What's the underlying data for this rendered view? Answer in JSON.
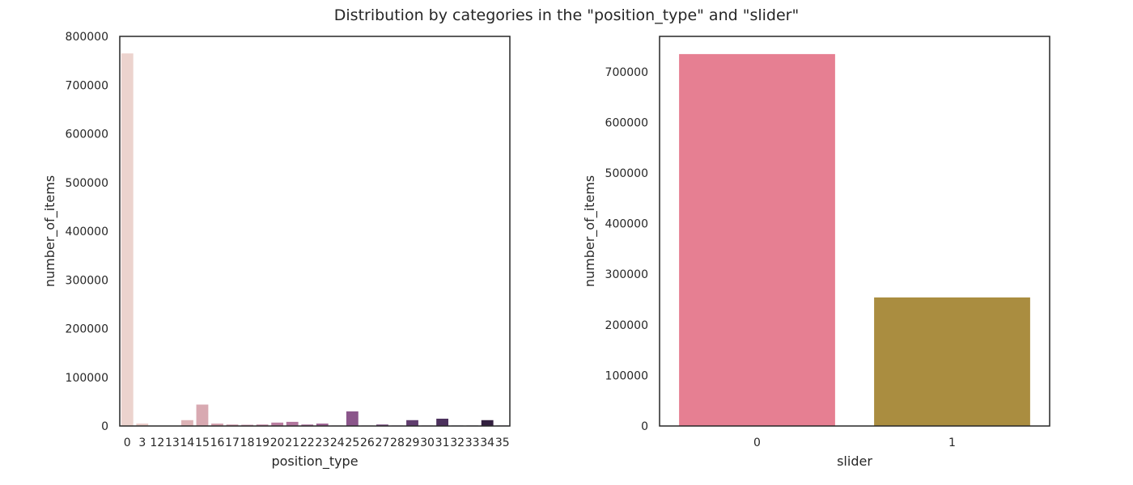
{
  "figure": {
    "title": "Distribution by categories in the \"position_type\" and \"slider\""
  },
  "chart_data": [
    {
      "type": "bar",
      "xlabel": "position_type",
      "ylabel": "number_of_items",
      "categories": [
        "0",
        "3",
        "12",
        "13",
        "14",
        "15",
        "16",
        "17",
        "18",
        "19",
        "20",
        "21",
        "22",
        "23",
        "24",
        "25",
        "26",
        "27",
        "28",
        "29",
        "30",
        "31",
        "32",
        "33",
        "34",
        "35"
      ],
      "values": [
        765000,
        5000,
        800,
        600,
        12000,
        44000,
        5000,
        3000,
        2500,
        3000,
        7000,
        8500,
        3000,
        5000,
        1000,
        30000,
        1000,
        3000,
        1000,
        12000,
        1000,
        15000,
        1000,
        1000,
        12000,
        1000
      ],
      "colors": [
        "#ecd3ce",
        "#e9cbc7",
        "#e5c3c1",
        "#e1bbbb",
        "#ddb3b6",
        "#d8a9b1",
        "#d3a0ad",
        "#cd97a9",
        "#c78ea6",
        "#c186a3",
        "#b97da0",
        "#b1759d",
        "#a86c99",
        "#9f6595",
        "#955d90",
        "#8b568b",
        "#805084",
        "#754a7e",
        "#6a4376",
        "#603d6e",
        "#563766",
        "#4c315d",
        "#432b53",
        "#3a2549",
        "#321f3f",
        "#2a1a35"
      ],
      "yticks": [
        0,
        100000,
        200000,
        300000,
        400000,
        500000,
        600000,
        700000,
        800000
      ],
      "ylim": [
        0,
        800000
      ],
      "grid": false
    },
    {
      "type": "bar",
      "xlabel": "slider",
      "ylabel": "number_of_items",
      "categories": [
        "0",
        "1"
      ],
      "values": [
        735000,
        254000
      ],
      "colors": [
        "#e67f92",
        "#aa8d40"
      ],
      "yticks": [
        0,
        100000,
        200000,
        300000,
        400000,
        500000,
        600000,
        700000
      ],
      "ylim": [
        0,
        770000
      ],
      "grid": false
    }
  ]
}
